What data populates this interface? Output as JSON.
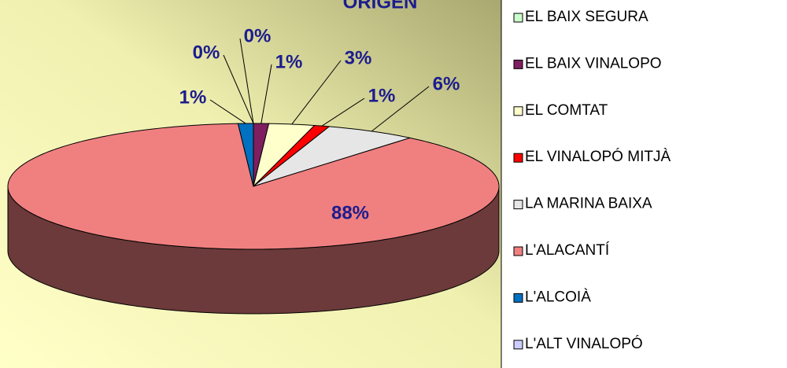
{
  "chart_data": {
    "type": "pie",
    "title": "ORIGEN",
    "categories": [
      "EL BAIX SEGURA",
      "EL BAIX VINALOPO",
      "EL COMTAT",
      "EL VINALOPÓ MITJÀ",
      "LA MARINA BAIXA",
      "L'ALACANTÍ",
      "L'ALCOIÀ",
      "L'ALT VINALOPÓ"
    ],
    "values": [
      0,
      1,
      3,
      1,
      6,
      88,
      1,
      0
    ],
    "value_labels": [
      "0%",
      "1%",
      "3%",
      "1%",
      "6%",
      "88%",
      "1%",
      "0%"
    ],
    "colors": [
      "#ccffcc",
      "#7f1f5f",
      "#ffffcc",
      "#ff0000",
      "#e6e6e6",
      "#f08080",
      "#0070c0",
      "#ccccff"
    ],
    "legend": "right"
  }
}
